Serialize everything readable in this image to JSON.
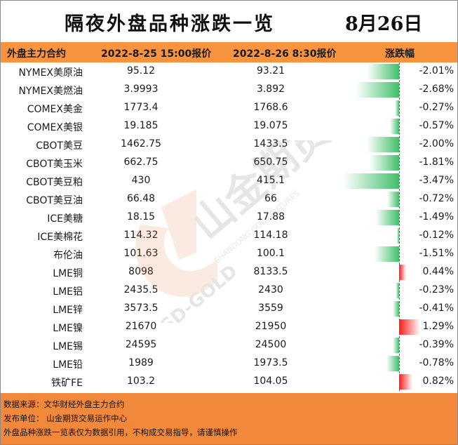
{
  "title": "隔夜外盘品种涨跌一览",
  "date": "8月26日",
  "headers": {
    "contract": "外盘主力合约",
    "prev_price": "2022-8-25 15:00报价",
    "curr_price": "2022-8-26 8:30报价",
    "change": "涨跌幅"
  },
  "rows": [
    {
      "name": "NYMEX美原油",
      "prev": "95.12",
      "curr": "93.21",
      "pct": "-2.01%",
      "value": -2.01
    },
    {
      "name": "NYMEX美燃油",
      "prev": "3.9993",
      "curr": "3.892",
      "pct": "-2.68%",
      "value": -2.68
    },
    {
      "name": "COMEX美金",
      "prev": "1773.4",
      "curr": "1768.6",
      "pct": "-0.27%",
      "value": -0.27
    },
    {
      "name": "COMEX美银",
      "prev": "19.185",
      "curr": "19.075",
      "pct": "-0.57%",
      "value": -0.57
    },
    {
      "name": "CBOT美豆",
      "prev": "1462.75",
      "curr": "1433.5",
      "pct": "-2.00%",
      "value": -2.0
    },
    {
      "name": "CBOT美玉米",
      "prev": "662.75",
      "curr": "650.75",
      "pct": "-1.81%",
      "value": -1.81
    },
    {
      "name": "CBOT美豆粕",
      "prev": "430",
      "curr": "415.1",
      "pct": "-3.47%",
      "value": -3.47
    },
    {
      "name": "CBOT美豆油",
      "prev": "66.48",
      "curr": "66",
      "pct": "-0.72%",
      "value": -0.72
    },
    {
      "name": "ICE美糖",
      "prev": "18.15",
      "curr": "17.88",
      "pct": "-1.49%",
      "value": -1.49
    },
    {
      "name": "ICE美棉花",
      "prev": "114.32",
      "curr": "114.18",
      "pct": "-0.12%",
      "value": -0.12
    },
    {
      "name": "布伦油",
      "prev": "101.63",
      "curr": "100.1",
      "pct": "-1.51%",
      "value": -1.51
    },
    {
      "name": "LME铜",
      "prev": "8098",
      "curr": "8133.5",
      "pct": "0.44%",
      "value": 0.44
    },
    {
      "name": "LME铝",
      "prev": "2435.5",
      "curr": "2430",
      "pct": "-0.23%",
      "value": -0.23
    },
    {
      "name": "LME锌",
      "prev": "3573.5",
      "curr": "3559",
      "pct": "-0.41%",
      "value": -0.41
    },
    {
      "name": "LME镍",
      "prev": "21670",
      "curr": "21950",
      "pct": "1.29%",
      "value": 1.29
    },
    {
      "name": "LME锡",
      "prev": "24595",
      "curr": "24500",
      "pct": "-0.39%",
      "value": -0.39
    },
    {
      "name": "LME铅",
      "prev": "1989",
      "curr": "1973.5",
      "pct": "-0.78%",
      "value": -0.78
    },
    {
      "name": "铁矿FE",
      "prev": "103.2",
      "curr": "104.05",
      "pct": "0.82%",
      "value": 0.82
    }
  ],
  "footer": {
    "source": "数据来源：文华财经外盘主力合约",
    "publisher": "发布单位：  山金期货交易运作中心",
    "disclaimer": "外盘品种涨跌一览表仅为数据引用，不构成交易指导，请谨慎操作"
  },
  "watermark": {
    "brand_cn": "山金期货",
    "brand_en": "SHANDONG GOLD FUTURES",
    "logo_text": "SD-GOLD"
  },
  "colors": {
    "header_bg": "#f7943d",
    "footer_bg": "#f2883a",
    "neg_bar": "#3fbf6a",
    "pos_bar": "#ff1a1a"
  }
}
